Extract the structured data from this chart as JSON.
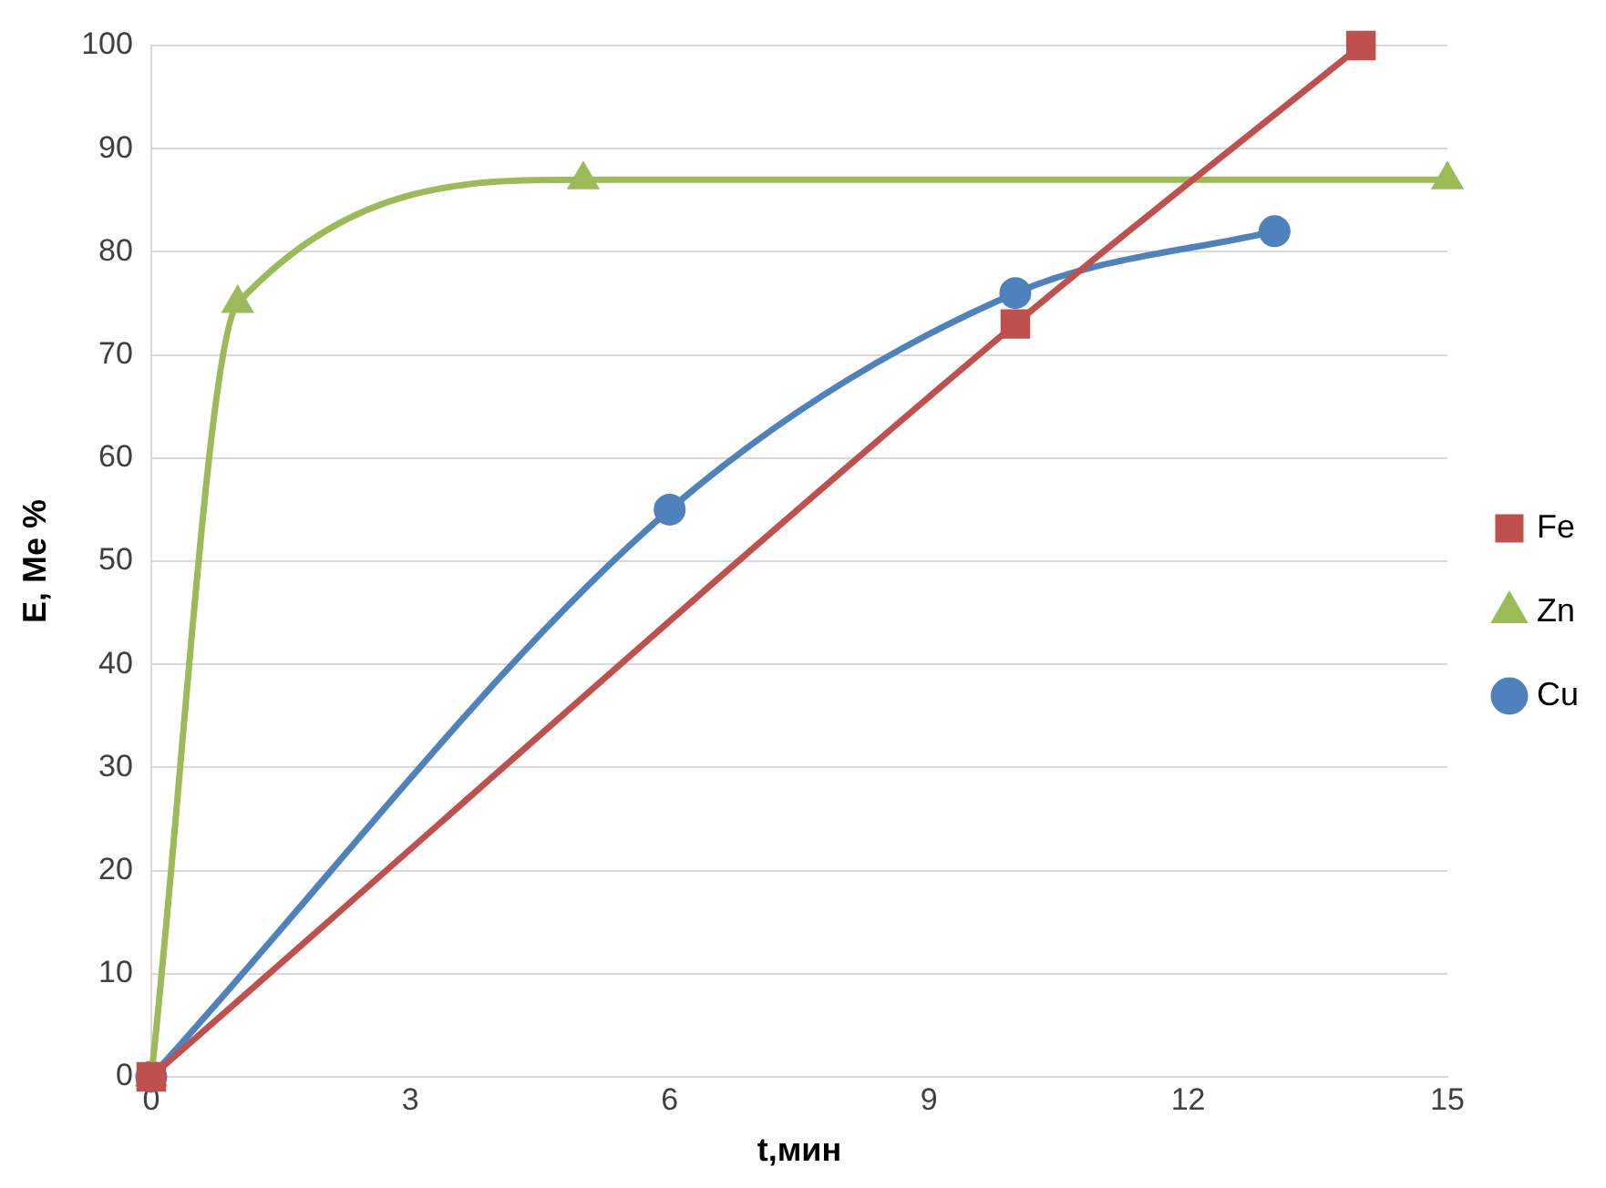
{
  "chart_data": {
    "type": "line",
    "xlabel": "t,мин",
    "ylabel": "E, Me %",
    "xlim": [
      0,
      15
    ],
    "xticks": [
      0,
      3,
      6,
      9,
      12,
      15
    ],
    "ylim": [
      0,
      100
    ],
    "yticks": [
      0,
      10,
      20,
      30,
      40,
      50,
      60,
      70,
      80,
      90,
      100
    ],
    "grid": "y",
    "legend": "right",
    "series": [
      {
        "name": "Fe",
        "color": "#c0504d",
        "marker": "square",
        "x": [
          0,
          10,
          14
        ],
        "values": [
          0,
          73,
          100
        ]
      },
      {
        "name": "Zn",
        "color": "#9bbb59",
        "marker": "triangle",
        "x": [
          0,
          1,
          5,
          15
        ],
        "values": [
          0,
          75,
          87,
          87
        ]
      },
      {
        "name": "Cu",
        "color": "#4f81bd",
        "marker": "circle",
        "x": [
          0,
          6,
          10,
          13
        ],
        "values": [
          0,
          55,
          76,
          82
        ]
      }
    ]
  }
}
